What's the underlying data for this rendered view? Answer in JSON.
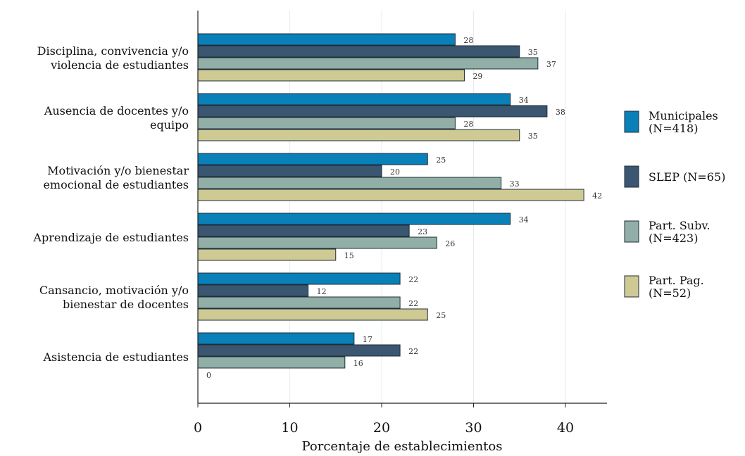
{
  "chart_data": {
    "type": "bar",
    "orientation": "horizontal",
    "title": "",
    "xlabel": "Porcentaje de establecimientos",
    "ylabel": "",
    "xlim": [
      0,
      45
    ],
    "xticks": [
      0,
      10,
      20,
      30,
      40
    ],
    "grid": true,
    "legend_position": "right",
    "categories": [
      [
        "Disciplina, convivencia y/o",
        "violencia de estudiantes"
      ],
      [
        "Ausencia de docentes y/o",
        "equipo"
      ],
      [
        "Motivación y/o bienestar",
        "emocional de estudiantes"
      ],
      [
        "Aprendizaje de estudiantes"
      ],
      [
        "Cansancio, motivación y/o",
        "bienestar de docentes"
      ],
      [
        "Asistencia de estudiantes"
      ]
    ],
    "series": [
      {
        "name": [
          "Municipales",
          "(N=418)"
        ],
        "color": "#0a80b8",
        "values": [
          28,
          34,
          25,
          34,
          22,
          17
        ]
      },
      {
        "name": [
          "SLEP (N=65)"
        ],
        "color": "#3b5670",
        "values": [
          35,
          38,
          20,
          23,
          12,
          22
        ]
      },
      {
        "name": [
          "Part. Subv.",
          "(N=423)"
        ],
        "color": "#91afa6",
        "values": [
          37,
          28,
          33,
          26,
          22,
          16
        ]
      },
      {
        "name": [
          "Part. Pag.",
          "(N=52)"
        ],
        "color": "#cfca94",
        "values": [
          29,
          35,
          42,
          15,
          25,
          0
        ]
      }
    ]
  }
}
